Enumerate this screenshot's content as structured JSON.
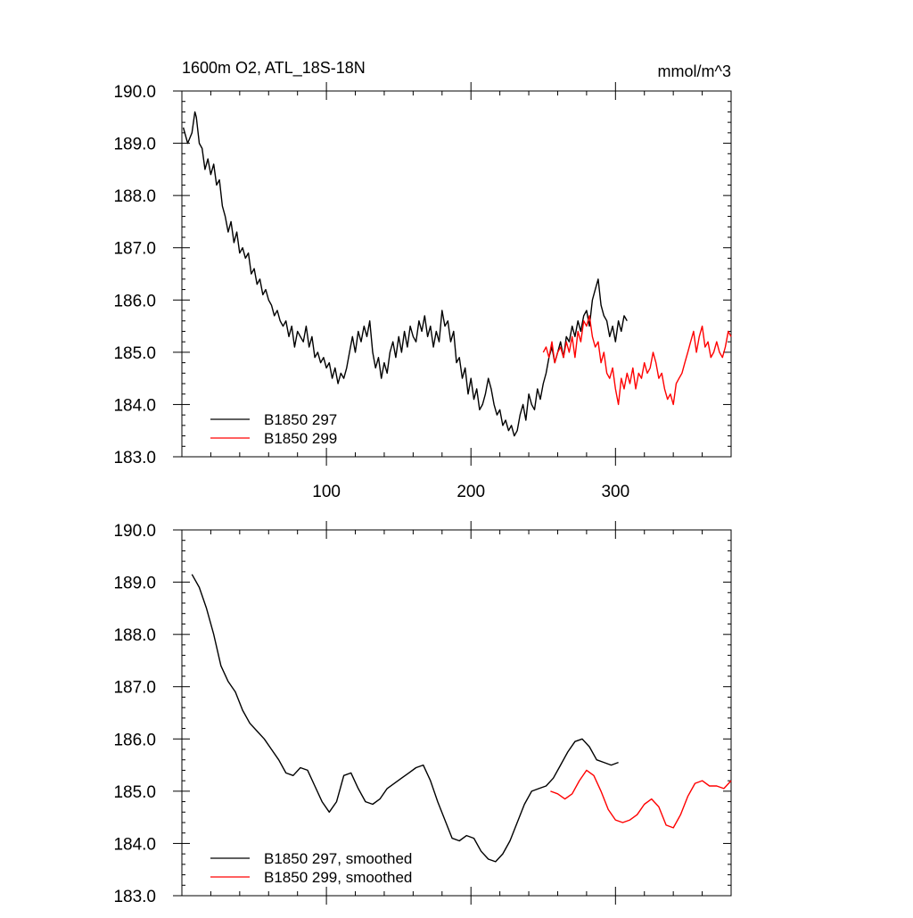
{
  "chart_data": [
    {
      "type": "line",
      "title": "1600m O2, ATL_18S-18N",
      "units": "mmol/m^3",
      "xlim": [
        0,
        380
      ],
      "ylim": [
        183.0,
        190.0
      ],
      "xticks": [
        100,
        200,
        300
      ],
      "xtick_labels": [
        "100",
        "200",
        "300"
      ],
      "yticks": [
        183,
        184,
        185,
        186,
        187,
        188,
        189,
        190
      ],
      "ytick_labels": [
        "183.0",
        "184.0",
        "185.0",
        "186.0",
        "187.0",
        "188.0",
        "189.0",
        "190.0"
      ],
      "legend_position": "bottom-left",
      "series": [
        {
          "name": "B1850 297",
          "color": "#000000",
          "x": [
            1,
            4,
            7,
            9,
            10,
            12,
            14,
            16,
            18,
            20,
            22,
            24,
            26,
            28,
            30,
            32,
            34,
            36,
            38,
            40,
            42,
            44,
            46,
            48,
            50,
            52,
            54,
            56,
            58,
            60,
            62,
            64,
            66,
            68,
            70,
            72,
            74,
            76,
            78,
            80,
            82,
            84,
            86,
            88,
            90,
            92,
            94,
            96,
            98,
            100,
            102,
            104,
            106,
            108,
            110,
            112,
            114,
            116,
            118,
            120,
            122,
            124,
            126,
            128,
            130,
            132,
            134,
            136,
            138,
            140,
            142,
            144,
            146,
            148,
            150,
            152,
            154,
            156,
            158,
            160,
            162,
            164,
            166,
            168,
            170,
            172,
            174,
            176,
            178,
            180,
            182,
            184,
            186,
            188,
            190,
            192,
            194,
            196,
            198,
            200,
            202,
            204,
            206,
            208,
            210,
            212,
            214,
            216,
            218,
            220,
            222,
            224,
            226,
            228,
            230,
            232,
            234,
            236,
            238,
            240,
            242,
            244,
            246,
            248,
            250,
            252,
            254,
            256,
            258,
            260,
            262,
            264,
            266,
            268,
            270,
            272,
            274,
            276,
            278,
            280,
            282,
            284,
            286,
            288,
            290,
            292,
            294,
            296,
            298,
            300,
            302,
            304,
            306,
            308
          ],
          "y": [
            189.3,
            189.0,
            189.2,
            189.6,
            189.5,
            189.0,
            188.9,
            188.5,
            188.7,
            188.4,
            188.6,
            188.2,
            188.3,
            187.8,
            187.6,
            187.3,
            187.5,
            187.1,
            187.3,
            186.9,
            187.0,
            186.8,
            186.9,
            186.5,
            186.6,
            186.3,
            186.4,
            186.1,
            186.2,
            186.0,
            185.9,
            185.7,
            185.8,
            185.6,
            185.5,
            185.6,
            185.3,
            185.5,
            185.1,
            185.4,
            185.3,
            185.2,
            185.5,
            185.1,
            185.3,
            184.9,
            185.0,
            184.8,
            184.9,
            184.7,
            184.8,
            184.5,
            184.7,
            184.4,
            184.6,
            184.5,
            184.7,
            185.0,
            185.3,
            185.0,
            185.4,
            185.2,
            185.5,
            185.3,
            185.6,
            185.0,
            184.7,
            184.9,
            184.5,
            184.8,
            184.6,
            185.0,
            185.2,
            184.9,
            185.3,
            185.0,
            185.4,
            185.1,
            185.5,
            185.3,
            185.2,
            185.6,
            185.4,
            185.7,
            185.3,
            185.5,
            185.1,
            185.4,
            185.2,
            185.8,
            185.5,
            185.6,
            185.2,
            185.4,
            184.8,
            184.9,
            184.5,
            184.7,
            184.2,
            184.5,
            184.1,
            184.3,
            183.9,
            184.0,
            184.2,
            184.5,
            184.3,
            184.0,
            183.8,
            183.9,
            183.6,
            183.7,
            183.5,
            183.6,
            183.4,
            183.5,
            183.8,
            184.0,
            183.7,
            184.2,
            184.0,
            183.9,
            184.3,
            184.1,
            184.4,
            184.6,
            184.9,
            185.1,
            184.8,
            185.0,
            185.2,
            184.9,
            185.3,
            185.2,
            185.5,
            185.3,
            185.6,
            185.4,
            185.7,
            185.8,
            185.5,
            186.0,
            186.2,
            186.4,
            185.9,
            185.7,
            185.6,
            185.3,
            185.5,
            185.2,
            185.6,
            185.4,
            185.7,
            185.6
          ]
        },
        {
          "name": "B1850 299",
          "color": "#ff0000",
          "x": [
            250,
            252,
            254,
            256,
            258,
            260,
            262,
            264,
            266,
            268,
            270,
            272,
            274,
            276,
            278,
            280,
            282,
            284,
            286,
            288,
            290,
            292,
            294,
            296,
            298,
            300,
            302,
            304,
            306,
            308,
            310,
            312,
            314,
            316,
            318,
            320,
            322,
            324,
            326,
            328,
            330,
            332,
            334,
            336,
            338,
            340,
            342,
            344,
            346,
            348,
            350,
            352,
            354,
            356,
            358,
            360,
            362,
            364,
            366,
            368,
            370,
            372,
            374,
            376,
            378,
            380
          ],
          "y": [
            185.0,
            185.1,
            184.9,
            185.2,
            184.8,
            185.0,
            185.1,
            184.9,
            185.2,
            185.0,
            185.3,
            184.9,
            185.4,
            185.2,
            185.6,
            185.5,
            185.7,
            185.3,
            185.1,
            185.2,
            184.8,
            185.0,
            184.6,
            184.5,
            184.7,
            184.3,
            184.0,
            184.5,
            184.3,
            184.6,
            184.4,
            184.7,
            184.3,
            184.6,
            184.5,
            184.8,
            184.6,
            184.7,
            185.0,
            184.8,
            184.5,
            184.6,
            184.3,
            184.1,
            184.2,
            184.0,
            184.4,
            184.5,
            184.6,
            184.8,
            185.0,
            185.2,
            185.4,
            185.0,
            185.3,
            185.5,
            185.1,
            185.2,
            184.9,
            185.0,
            185.2,
            185.0,
            184.9,
            185.1,
            185.4,
            185.3
          ]
        }
      ]
    },
    {
      "type": "line",
      "xlim": [
        0,
        380
      ],
      "ylim": [
        183.0,
        190.0
      ],
      "yticks": [
        183,
        184,
        185,
        186,
        187,
        188,
        189,
        190
      ],
      "ytick_labels": [
        "183.0",
        "184.0",
        "185.0",
        "186.0",
        "187.0",
        "188.0",
        "189.0",
        "190.0"
      ],
      "legend_position": "bottom-left",
      "series": [
        {
          "name": "B1850 297, smoothed",
          "color": "#000000",
          "x": [
            7,
            12,
            17,
            22,
            27,
            32,
            37,
            42,
            47,
            52,
            57,
            62,
            67,
            72,
            77,
            82,
            87,
            92,
            97,
            102,
            107,
            112,
            117,
            122,
            127,
            132,
            137,
            142,
            147,
            152,
            157,
            162,
            167,
            172,
            177,
            182,
            187,
            192,
            197,
            202,
            207,
            212,
            217,
            222,
            227,
            232,
            237,
            242,
            247,
            252,
            257,
            262,
            267,
            272,
            277,
            282,
            287,
            292,
            297,
            302
          ],
          "y": [
            189.15,
            188.9,
            188.5,
            188.0,
            187.4,
            187.1,
            186.9,
            186.55,
            186.3,
            186.15,
            186.0,
            185.8,
            185.6,
            185.35,
            185.3,
            185.45,
            185.4,
            185.1,
            184.8,
            184.6,
            184.8,
            185.3,
            185.35,
            185.05,
            184.8,
            184.75,
            184.85,
            185.05,
            185.15,
            185.25,
            185.35,
            185.45,
            185.5,
            185.2,
            184.8,
            184.45,
            184.1,
            184.05,
            184.15,
            184.1,
            183.85,
            183.7,
            183.65,
            183.8,
            184.05,
            184.4,
            184.75,
            185.0,
            185.05,
            185.1,
            185.25,
            185.5,
            185.75,
            185.95,
            186.0,
            185.85,
            185.6,
            185.55,
            185.5,
            185.55
          ]
        },
        {
          "name": "B1850 299, smoothed",
          "color": "#ff0000",
          "x": [
            255,
            260,
            265,
            270,
            275,
            280,
            285,
            290,
            295,
            300,
            305,
            310,
            315,
            320,
            325,
            330,
            335,
            340,
            345,
            350,
            355,
            360,
            365,
            370,
            375,
            380
          ],
          "y": [
            185.0,
            184.95,
            184.85,
            184.95,
            185.2,
            185.4,
            185.3,
            185.0,
            184.65,
            184.45,
            184.4,
            184.45,
            184.55,
            184.75,
            184.85,
            184.7,
            184.35,
            184.3,
            184.55,
            184.9,
            185.15,
            185.2,
            185.1,
            185.1,
            185.05,
            185.2
          ]
        }
      ]
    }
  ]
}
